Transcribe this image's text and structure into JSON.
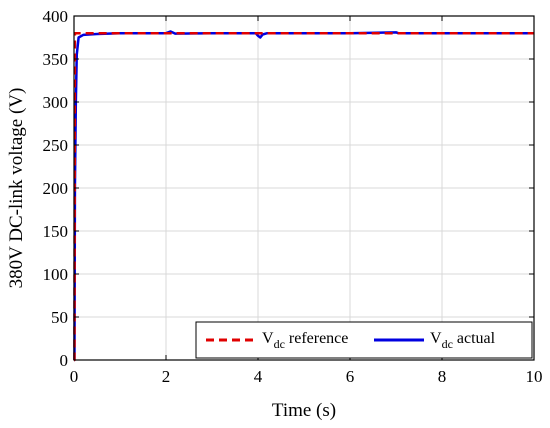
{
  "chart_data": {
    "type": "line",
    "xlabel": "Time (s)",
    "ylabel": "380V DC-link voltage (V)",
    "xlim": [
      0,
      10
    ],
    "ylim": [
      0,
      400
    ],
    "xticks": [
      "0",
      "2",
      "4",
      "6",
      "8",
      "10"
    ],
    "yticks": [
      "0",
      "50",
      "100",
      "150",
      "200",
      "250",
      "300",
      "350",
      "400"
    ],
    "grid": true,
    "legend_position": "bottom-right",
    "legend": [
      {
        "main": "V",
        "sub": "dc",
        "rest": " reference"
      },
      {
        "main": "V",
        "sub": "dc",
        "rest": " actual"
      }
    ],
    "series": [
      {
        "name": "Vdc reference",
        "color": "#e00000",
        "dash": true,
        "x": [
          0,
          0.01,
          0.02,
          0.05,
          10
        ],
        "y": [
          0,
          0,
          380,
          380,
          380
        ]
      },
      {
        "name": "Vdc actual",
        "color": "#0000e0",
        "dash": false,
        "x": [
          0,
          0.01,
          0.02,
          0.04,
          0.06,
          0.1,
          0.2,
          0.5,
          1.0,
          2.0,
          2.1,
          2.2,
          3.0,
          3.95,
          4.0,
          4.05,
          4.1,
          4.2,
          5.0,
          6.0,
          7.0,
          7.05,
          8.0,
          9.0,
          10.0
        ],
        "y": [
          0,
          0,
          200,
          300,
          355,
          375,
          378,
          379,
          380,
          380,
          382,
          379.5,
          380,
          380,
          377,
          375,
          378.5,
          380,
          380,
          380,
          381,
          380,
          380,
          380,
          380
        ]
      }
    ]
  }
}
